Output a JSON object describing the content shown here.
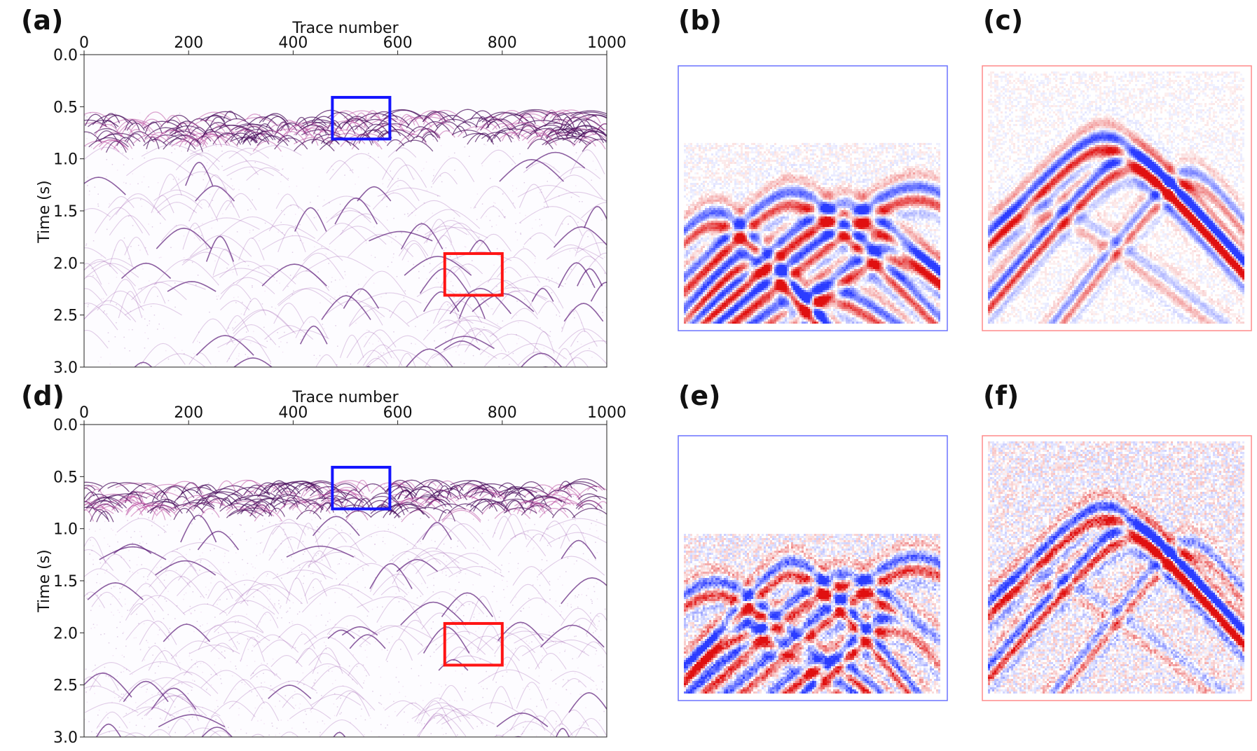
{
  "figure": {
    "panel_labels": [
      "(a)",
      "(b)",
      "(c)",
      "(d)",
      "(e)",
      "(f)"
    ]
  },
  "chart_data": [
    {
      "panel": "(a)",
      "type": "heatmap",
      "title": "",
      "xlabel": "Trace number",
      "ylabel": "Time (s)",
      "xlim": [
        0,
        1000
      ],
      "ylim": [
        3.0,
        0.0
      ],
      "x_ticks": [
        0,
        200,
        400,
        600,
        800,
        1000
      ],
      "y_ticks": [
        0.0,
        0.5,
        1.0,
        1.5,
        2.0,
        2.5,
        3.0
      ],
      "x_tick_labels": [
        "0",
        "200",
        "400",
        "600",
        "800",
        "1000"
      ],
      "y_tick_labels": [
        "0.0",
        "0.5",
        "1.0",
        "1.5",
        "2.0",
        "2.5",
        "3.0"
      ],
      "colormap": [
        "#2b3cff",
        "#ffffff",
        "#e01010"
      ],
      "annotations": [
        {
          "shape": "rectangle",
          "color": "#1414ff",
          "x_range": [
            475,
            585
          ],
          "y_range": [
            0.41,
            0.81
          ]
        },
        {
          "shape": "rectangle",
          "color": "#ff1414",
          "x_range": [
            690,
            800
          ],
          "y_range": [
            1.91,
            2.31
          ]
        }
      ],
      "noise_level": 0.35
    },
    {
      "panel": "(b)",
      "type": "heatmap",
      "title": "",
      "xlabel": "",
      "ylabel": "",
      "border_color": "#6a72ff",
      "colormap": [
        "#2b3cff",
        "#ffffff",
        "#e01010"
      ]
    },
    {
      "panel": "(c)",
      "type": "heatmap",
      "title": "",
      "xlabel": "",
      "ylabel": "",
      "border_color": "#ff8a8a",
      "colormap": [
        "#2b3cff",
        "#ffffff",
        "#e01010"
      ]
    },
    {
      "panel": "(d)",
      "type": "heatmap",
      "title": "",
      "xlabel": "Trace number",
      "ylabel": "Time (s)",
      "xlim": [
        0,
        1000
      ],
      "ylim": [
        3.0,
        0.0
      ],
      "x_ticks": [
        0,
        200,
        400,
        600,
        800,
        1000
      ],
      "y_ticks": [
        0.0,
        0.5,
        1.0,
        1.5,
        2.0,
        2.5,
        3.0
      ],
      "x_tick_labels": [
        "0",
        "200",
        "400",
        "600",
        "800",
        "1000"
      ],
      "y_tick_labels": [
        "0.0",
        "0.5",
        "1.0",
        "1.5",
        "2.0",
        "2.5",
        "3.0"
      ],
      "colormap": [
        "#2b3cff",
        "#ffffff",
        "#e01010"
      ],
      "annotations": [
        {
          "shape": "rectangle",
          "color": "#1414ff",
          "x_range": [
            475,
            585
          ],
          "y_range": [
            0.41,
            0.81
          ]
        },
        {
          "shape": "rectangle",
          "color": "#ff1414",
          "x_range": [
            690,
            800
          ],
          "y_range": [
            1.91,
            2.31
          ]
        }
      ],
      "noise_level": 0.6
    },
    {
      "panel": "(e)",
      "type": "heatmap",
      "title": "",
      "xlabel": "",
      "ylabel": "",
      "border_color": "#6a72ff",
      "colormap": [
        "#2b3cff",
        "#ffffff",
        "#e01010"
      ]
    },
    {
      "panel": "(f)",
      "type": "heatmap",
      "title": "",
      "xlabel": "",
      "ylabel": "",
      "border_color": "#ff8a8a",
      "colormap": [
        "#2b3cff",
        "#ffffff",
        "#e01010"
      ]
    }
  ]
}
